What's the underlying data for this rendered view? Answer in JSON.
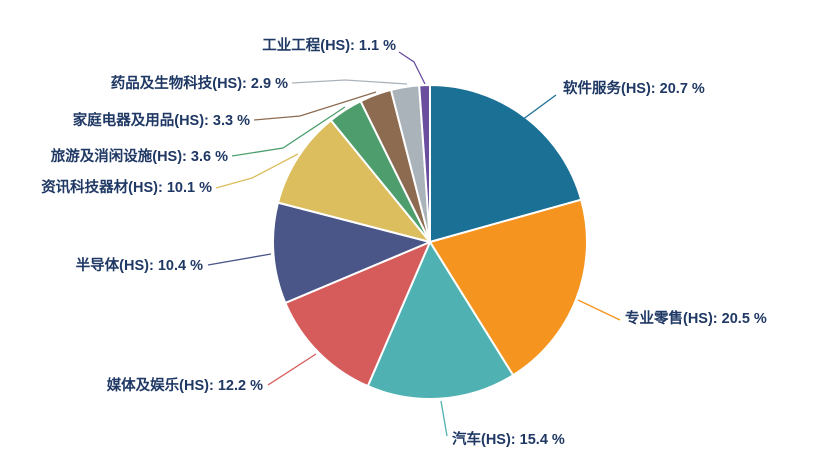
{
  "chart_data": {
    "type": "pie",
    "title": "",
    "unit": "%",
    "direction": "clockwise",
    "start_angle_deg": 0,
    "legend": "none",
    "label_format": "{label}: {value} %",
    "label_color": "#1F3864",
    "slice_border_color": "#FFFFFF",
    "slices": [
      {
        "label": "软件服务(HS)",
        "value": 20.7,
        "color": "#1B7095"
      },
      {
        "label": "专业零售(HS)",
        "value": 20.5,
        "color": "#F5941F"
      },
      {
        "label": "汽车(HS)",
        "value": 15.4,
        "color": "#4FB1B1"
      },
      {
        "label": "媒体及娱乐(HS)",
        "value": 12.2,
        "color": "#D65B5B"
      },
      {
        "label": "半导体(HS)",
        "value": 10.4,
        "color": "#4A5588"
      },
      {
        "label": "资讯科技器材(HS)",
        "value": 10.1,
        "color": "#DCBE5F"
      },
      {
        "label": "旅游及消闲设施(HS)",
        "value": 3.6,
        "color": "#4D9E6C"
      },
      {
        "label": "家庭电器及用品(HS)",
        "value": 3.3,
        "color": "#8D6B50"
      },
      {
        "label": "药品及生物科技(HS)",
        "value": 2.9,
        "color": "#ABB3BA"
      },
      {
        "label": "工业工程(HS)",
        "value": 1.1,
        "color": "#6A4F9F"
      }
    ]
  }
}
